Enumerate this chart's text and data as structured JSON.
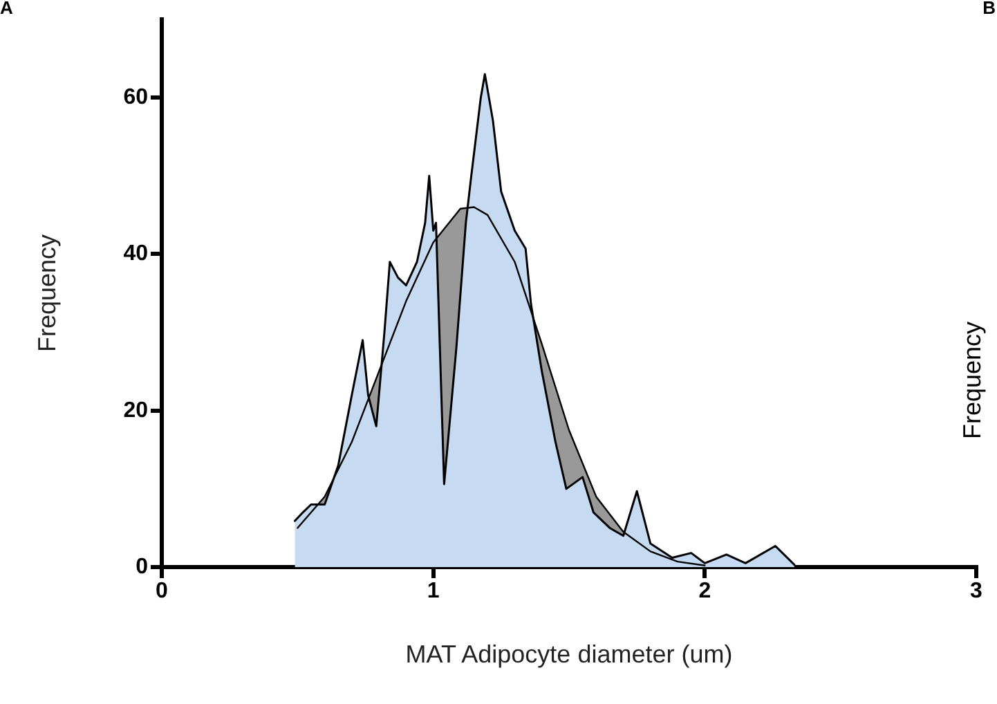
{
  "chart_data": {
    "type": "area",
    "xlabel": "MAT Adipocyte diameter (um)",
    "ylabel": "Frequency",
    "annotations": [
      "A",
      "B",
      "Frequency"
    ],
    "xlim": [
      0,
      3
    ],
    "xticks": [
      0,
      1,
      2,
      3
    ],
    "ylim": [
      0,
      70
    ],
    "yticks": [
      0,
      20,
      40,
      60
    ],
    "grid": false,
    "legend": false,
    "marker": "none",
    "line_style": "solid",
    "series": [
      {
        "color": "#c6dbf2",
        "x": [
          0.49,
          0.52,
          0.55,
          0.6,
          0.65,
          0.7,
          0.74,
          0.76,
          0.79,
          0.82,
          0.84,
          0.87,
          0.9,
          0.94,
          0.97,
          0.985,
          1.0,
          1.01,
          1.04,
          1.085,
          1.12,
          1.14,
          1.175,
          1.19,
          1.22,
          1.25,
          1.3,
          1.34,
          1.36,
          1.4,
          1.45,
          1.49,
          1.55,
          1.59,
          1.65,
          1.7,
          1.75,
          1.8,
          1.88,
          1.95,
          2.0,
          2.08,
          2.15,
          2.26,
          2.33
        ],
        "values": [
          5.9,
          7,
          8,
          8,
          13,
          22,
          29,
          22,
          18,
          30,
          39,
          37,
          36,
          39,
          44,
          50,
          43,
          44,
          10.6,
          28,
          44,
          50,
          60,
          63,
          57,
          48,
          43,
          40.7,
          33.6,
          25,
          16,
          10,
          11.5,
          7,
          5,
          4,
          9.7,
          3,
          1.2,
          1.8,
          0.5,
          1.6,
          0.5,
          2.7,
          0.3
        ]
      },
      {
        "color": "#999999",
        "x": [
          0.5,
          0.6,
          0.7,
          0.8,
          0.9,
          1.0,
          1.1,
          1.15,
          1.2,
          1.3,
          1.4,
          1.5,
          1.6,
          1.7,
          1.8,
          1.9,
          2.0
        ],
        "values": [
          5,
          9,
          16,
          25,
          34,
          41.5,
          45.8,
          46,
          45,
          39,
          28.5,
          17.5,
          9,
          4.5,
          2,
          0.7,
          0.2
        ]
      }
    ]
  }
}
